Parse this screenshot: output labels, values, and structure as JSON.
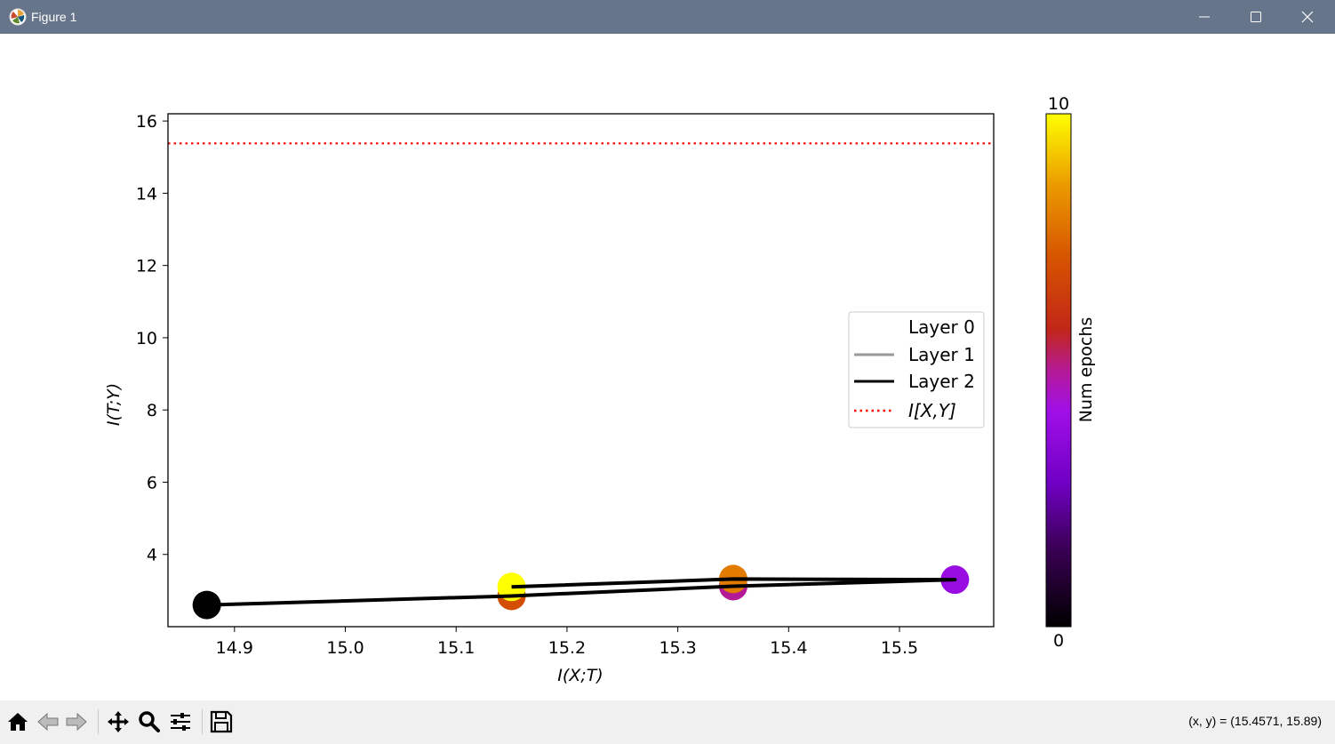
{
  "window": {
    "title": "Figure 1",
    "icons": {
      "app": "matplotlib-icon",
      "minimize": "minimize-icon",
      "maximize": "maximize-icon",
      "close": "close-icon"
    }
  },
  "toolbar": {
    "buttons": [
      {
        "name": "home-button",
        "icon": "home-icon"
      },
      {
        "name": "back-button",
        "icon": "back-arrow-icon"
      },
      {
        "name": "forward-button",
        "icon": "forward-arrow-icon"
      },
      {
        "name": "pan-button",
        "icon": "move-icon"
      },
      {
        "name": "zoom-button",
        "icon": "magnifier-icon"
      },
      {
        "name": "configure-subplots-button",
        "icon": "sliders-icon"
      },
      {
        "name": "save-button",
        "icon": "floppy-disk-icon"
      }
    ],
    "coordinates": "(x, y) = (15.4571, 15.89)"
  },
  "chart_data": {
    "type": "scatter",
    "xlabel": "I(X;T)",
    "ylabel": "I(T;Y)",
    "xlim": [
      14.84,
      15.585
    ],
    "ylim": [
      2.0,
      16.2
    ],
    "xticks": [
      14.9,
      15.0,
      15.1,
      15.2,
      15.3,
      15.4,
      15.5
    ],
    "yticks": [
      4,
      6,
      8,
      10,
      12,
      14,
      16
    ],
    "xtick_labels": [
      "14.9",
      "15.0",
      "15.1",
      "15.2",
      "15.3",
      "15.4",
      "15.5"
    ],
    "ytick_labels": [
      "4",
      "6",
      "8",
      "10",
      "12",
      "14",
      "16"
    ],
    "hline": {
      "label": "I[X,Y]",
      "y": 15.38,
      "color": "#ff0000",
      "style": "dotted"
    },
    "series": [
      {
        "name": "Layer 0",
        "color": "#ffffff",
        "points": []
      },
      {
        "name": "Layer 1",
        "color": "#999999",
        "points": []
      },
      {
        "name": "Layer 2",
        "color": "#000000",
        "points": [
          {
            "x": 14.875,
            "y": 2.6,
            "epoch": 0
          },
          {
            "x": 15.15,
            "y": 2.85,
            "epoch": 7
          },
          {
            "x": 15.35,
            "y": 3.12,
            "epoch": 5
          },
          {
            "x": 15.55,
            "y": 3.3,
            "epoch": 4
          },
          {
            "x": 15.35,
            "y": 3.32,
            "epoch": 8
          },
          {
            "x": 15.15,
            "y": 3.1,
            "epoch": 10
          }
        ]
      }
    ],
    "legend": {
      "placement": "center-right",
      "entries": [
        "Layer 0",
        "Layer 1",
        "Layer 2",
        "I[X,Y]"
      ]
    },
    "colorbar": {
      "label": "Num epochs",
      "min": 0,
      "max": 10,
      "min_label": "0",
      "max_label": "10",
      "colormap": "gnuplot"
    }
  }
}
